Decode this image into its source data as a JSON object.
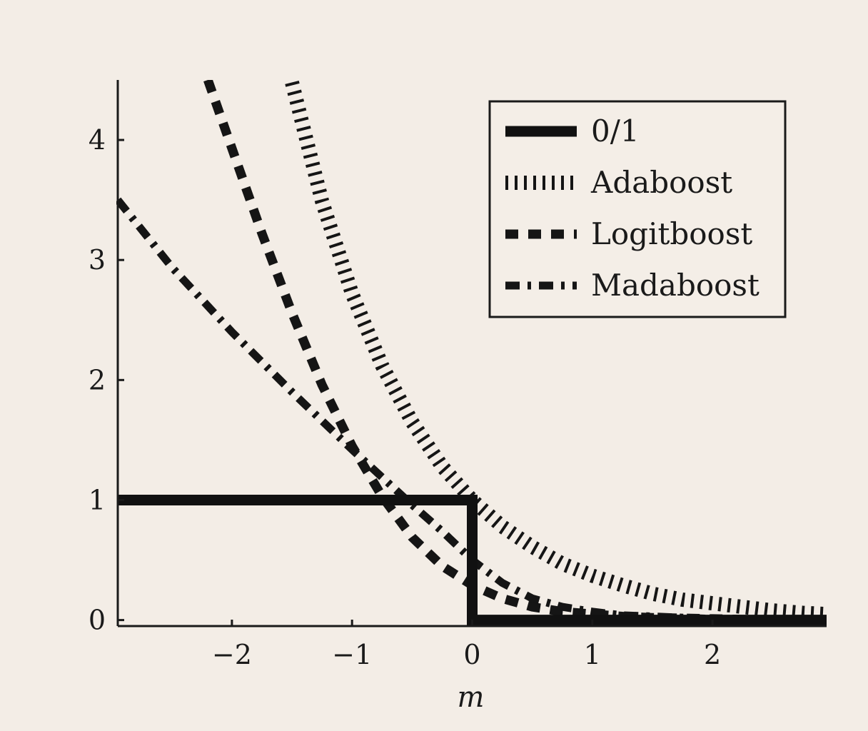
{
  "chart_data": {
    "type": "line",
    "title": "",
    "xlabel": "m",
    "ylabel": "",
    "xlim": [
      -2.95,
      2.95
    ],
    "ylim": [
      -0.05,
      4.5
    ],
    "xticks": [
      -2,
      -1,
      0,
      1,
      2
    ],
    "xtick_labels": [
      "−2",
      "−1",
      "0",
      "1",
      "2"
    ],
    "yticks": [
      0,
      1,
      2,
      3,
      4
    ],
    "ytick_labels": [
      "0",
      "1",
      "2",
      "3",
      "4"
    ],
    "grid": false,
    "legend_position": "top-right",
    "series": [
      {
        "name": "0/1",
        "style": "solid",
        "color": "#111111",
        "points": [
          [
            -2.95,
            1
          ],
          [
            0,
            1
          ],
          [
            0,
            0
          ],
          [
            2.95,
            0
          ]
        ]
      },
      {
        "name": "Adaboost",
        "style": "dotted",
        "color": "#151515",
        "points": [
          [
            -1.5,
            4.48
          ],
          [
            -1.25,
            3.49
          ],
          [
            -1.0,
            2.72
          ],
          [
            -0.75,
            2.12
          ],
          [
            -0.5,
            1.65
          ],
          [
            -0.25,
            1.28
          ],
          [
            0,
            1.0
          ],
          [
            0.25,
            0.78
          ],
          [
            0.5,
            0.61
          ],
          [
            0.75,
            0.47
          ],
          [
            1.0,
            0.37
          ],
          [
            1.25,
            0.29
          ],
          [
            1.5,
            0.22
          ],
          [
            1.75,
            0.17
          ],
          [
            2.0,
            0.14
          ],
          [
            2.25,
            0.11
          ],
          [
            2.5,
            0.08
          ],
          [
            2.75,
            0.06
          ],
          [
            2.95,
            0.05
          ]
        ]
      },
      {
        "name": "Logitboost",
        "style": "dashed",
        "color": "#151515",
        "points": [
          [
            -2.2,
            4.5
          ],
          [
            -2.0,
            3.93
          ],
          [
            -1.75,
            3.22
          ],
          [
            -1.5,
            2.56
          ],
          [
            -1.25,
            1.96
          ],
          [
            -1.0,
            1.45
          ],
          [
            -0.75,
            1.03
          ],
          [
            -0.5,
            0.69
          ],
          [
            -0.25,
            0.45
          ],
          [
            0,
            0.29
          ],
          [
            0.25,
            0.18
          ],
          [
            0.5,
            0.11
          ],
          [
            0.75,
            0.07
          ],
          [
            1.0,
            0.05
          ],
          [
            1.25,
            0.03
          ],
          [
            1.5,
            0.02
          ],
          [
            2.0,
            0.01
          ],
          [
            2.5,
            0.0
          ],
          [
            2.95,
            0.0
          ]
        ]
      },
      {
        "name": "Madaboost",
        "style": "dashdot",
        "color": "#151515",
        "points": [
          [
            -2.95,
            3.5
          ],
          [
            -2.5,
            2.94
          ],
          [
            -2.0,
            2.4
          ],
          [
            -1.5,
            1.9
          ],
          [
            -1.0,
            1.42
          ],
          [
            -0.5,
            0.96
          ],
          [
            -0.25,
            0.74
          ],
          [
            0,
            0.5
          ],
          [
            0.25,
            0.31
          ],
          [
            0.5,
            0.18
          ],
          [
            0.75,
            0.11
          ],
          [
            1.0,
            0.07
          ],
          [
            1.25,
            0.04
          ],
          [
            1.5,
            0.03
          ],
          [
            2.0,
            0.01
          ],
          [
            2.5,
            0.0
          ],
          [
            2.95,
            0.0
          ]
        ]
      }
    ]
  }
}
